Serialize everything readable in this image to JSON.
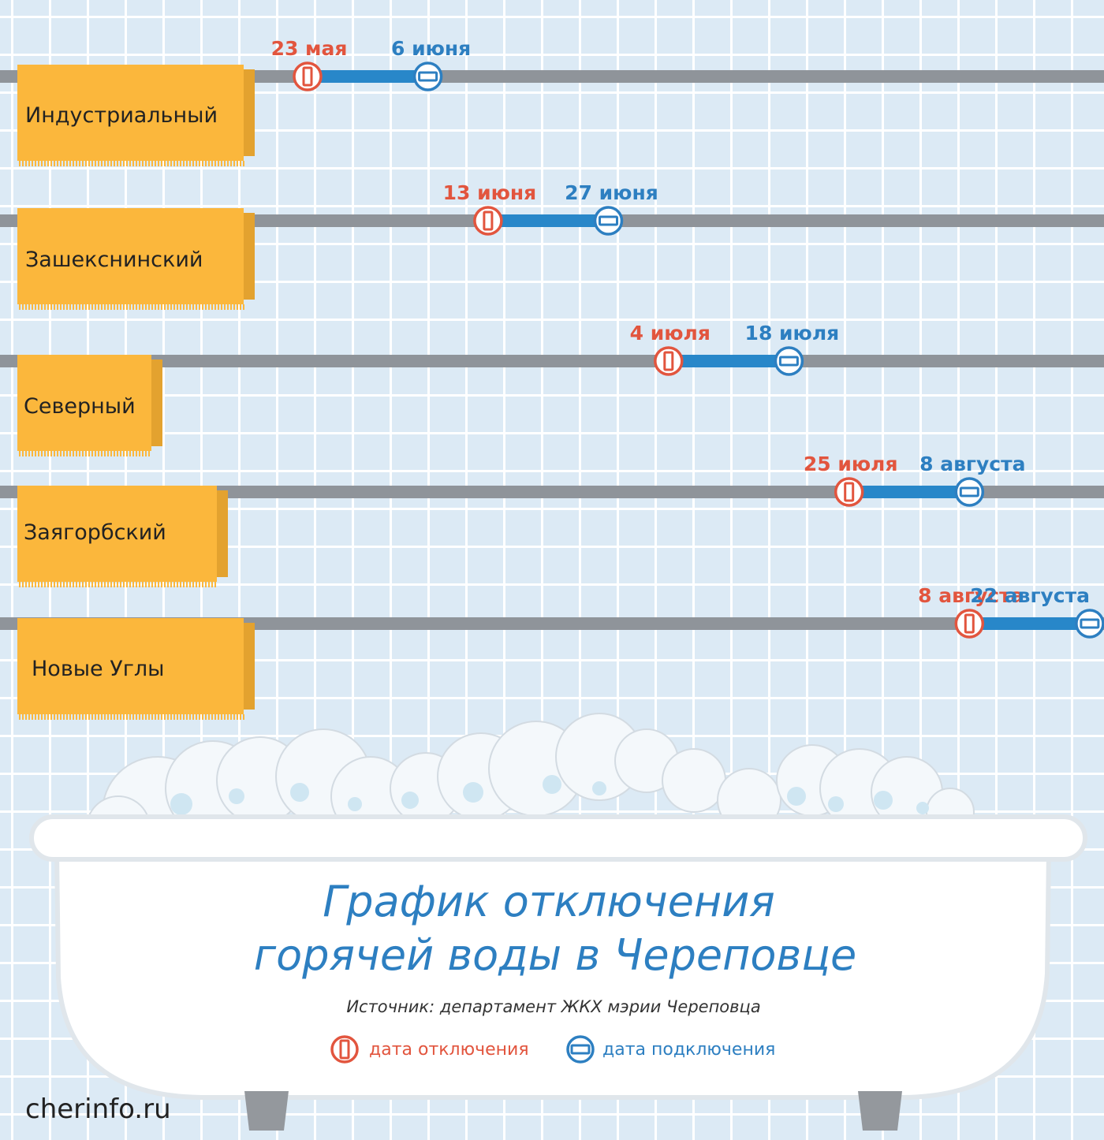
{
  "chart_data": {
    "type": "timeline",
    "title_lines": [
      "График отключения",
      "горячей воды в Череповце"
    ],
    "source": "Источник: департамент ЖКХ мэрии Череповца",
    "legend": {
      "off": "дата отключения",
      "on": "дата подключения"
    },
    "colors": {
      "off": "#e2553e",
      "on": "#2d7fc1",
      "bar": "#2887c9",
      "pipe": "#8f949a",
      "towel": "#fbb73c",
      "towel_shadow": "#e3a22f"
    },
    "series": [
      {
        "name": "Индустриальный",
        "off_label": "23 мая",
        "on_label": "6 июня",
        "off_date": "2017-05-23",
        "on_date": "2017-06-06"
      },
      {
        "name": "Зашекснинский",
        "off_label": "13 июня",
        "on_label": "27 июня",
        "off_date": "2017-06-13",
        "on_date": "2017-06-27"
      },
      {
        "name": "Северный",
        "off_label": "4 июля",
        "on_label": "18 июля",
        "off_date": "2017-07-04",
        "on_date": "2017-07-18"
      },
      {
        "name": "Заягорбский",
        "off_label": "25 июля",
        "on_label": "8 августа",
        "off_date": "2017-07-25",
        "on_date": "2017-08-08"
      },
      {
        "name": "Новые Углы",
        "off_label": "8 августа",
        "on_label": "22 августа",
        "off_date": "2017-08-08",
        "on_date": "2017-08-22"
      }
    ]
  },
  "footer": {
    "site": "cherinfo.ru"
  }
}
